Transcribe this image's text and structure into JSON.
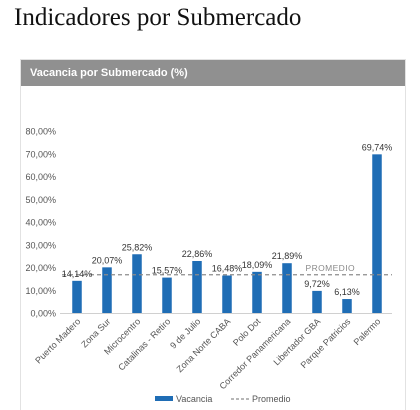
{
  "page": {
    "title": "Indicadores por Submercado"
  },
  "panel": {
    "header": "Vacancia por Submercado (%)"
  },
  "colors": {
    "bar": "#1f6db5",
    "average_line": "#8c8c8c",
    "header_bg": "#909090"
  },
  "chart_data": {
    "type": "bar",
    "categories": [
      "Puerto Madero",
      "Zona Sur",
      "Microcentro",
      "Catalinas - Retiro",
      "9 de Julio",
      "Zona Norte CABA",
      "Polo Dot",
      "Corredor Panamericana",
      "Libertador GBA",
      "Parque Patricios",
      "Palermo"
    ],
    "series": [
      {
        "name": "Vacancia",
        "values": [
          14.14,
          20.07,
          25.82,
          15.57,
          22.86,
          16.48,
          18.09,
          21.89,
          9.72,
          6.13,
          69.74
        ]
      }
    ],
    "data_labels": [
      "14,14%",
      "20,07%",
      "25,82%",
      "15,57%",
      "22,86%",
      "16,48%",
      "18,09%",
      "21,89%",
      "9,72%",
      "6,13%",
      "69,74%"
    ],
    "average": {
      "name": "Promedio",
      "value": 16.8,
      "label": "PROMEDIO"
    },
    "ylim": [
      0,
      80
    ],
    "yticks": [
      0,
      10,
      20,
      30,
      40,
      50,
      60,
      70,
      80
    ],
    "ytick_labels": [
      "0,00%",
      "10,00%",
      "20,00%",
      "30,00%",
      "40,00%",
      "50,00%",
      "60,00%",
      "70,00%",
      "80,00%"
    ],
    "grid": false,
    "legend": {
      "position": "bottom",
      "entries": [
        "Vacancia",
        "Promedio"
      ]
    }
  }
}
